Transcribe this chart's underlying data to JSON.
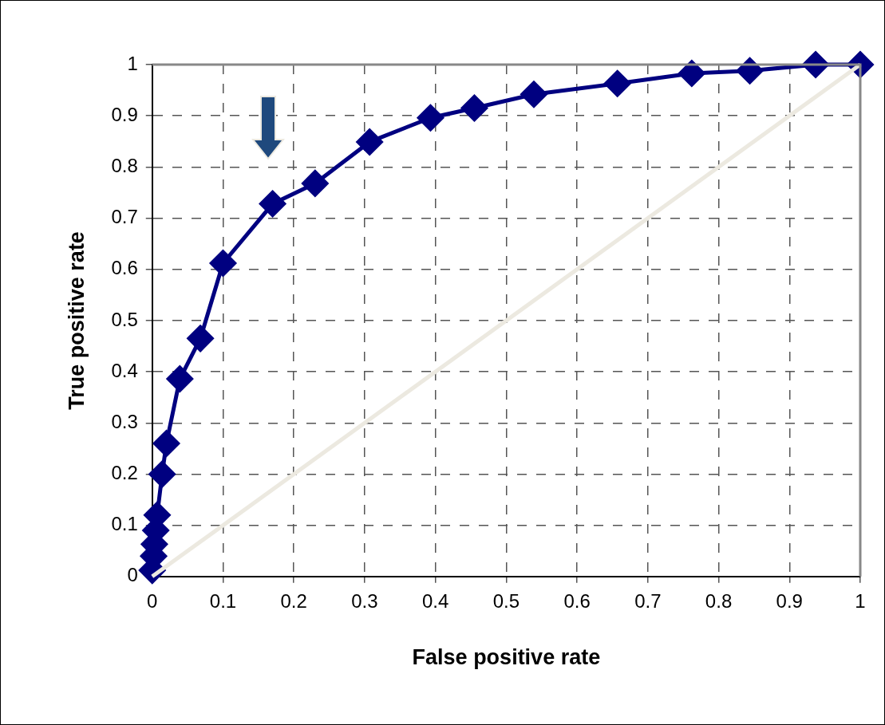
{
  "chart_data": {
    "type": "line",
    "xlabel": "False positive rate",
    "ylabel": "True positive rate",
    "series": [
      {
        "color": "#000080",
        "marker": "diamond",
        "x": [
          0,
          0.002,
          0.003,
          0.005,
          0.007,
          0.014,
          0.02,
          0.039,
          0.068,
          0.1,
          0.17,
          0.23,
          0.307,
          0.393,
          0.455,
          0.539,
          0.657,
          0.762,
          0.844,
          0.937,
          1
        ],
        "values": [
          0.012,
          0.04,
          0.063,
          0.09,
          0.12,
          0.2,
          0.26,
          0.386,
          0.465,
          0.612,
          0.728,
          0.768,
          0.849,
          0.896,
          0.915,
          0.942,
          0.963,
          0.983,
          0.988,
          1,
          1
        ]
      },
      {
        "color": "#ece9e0",
        "marker": "none",
        "x": [
          0,
          1
        ],
        "values": [
          0,
          1
        ]
      }
    ],
    "xlim": [
      0,
      1
    ],
    "ylim": [
      0,
      1
    ],
    "xticks": [
      0,
      0.1,
      0.2,
      0.3,
      0.4,
      0.5,
      0.6,
      0.7,
      0.8,
      0.9,
      1
    ],
    "yticks": [
      0,
      0.1,
      0.2,
      0.3,
      0.4,
      0.5,
      0.6,
      0.7,
      0.8,
      0.9,
      1
    ],
    "grid": true,
    "legend": false
  }
}
